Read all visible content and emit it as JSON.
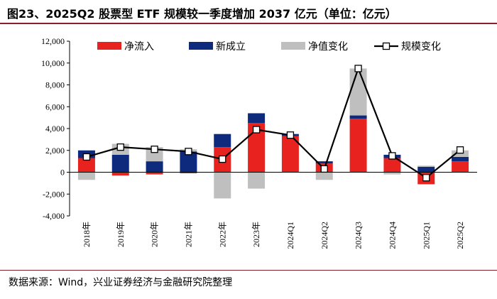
{
  "title": "图23、2025Q2 股票型 ETF 规模较一季度增加 2037 亿元（单位：亿元）",
  "source": "数据来源：Wind，兴业证券经济与金融研究院整理",
  "chart_data": {
    "type": "bar",
    "stacked": true,
    "categories": [
      "2018年",
      "2019年",
      "2020年",
      "2021年",
      "2022年",
      "2023年",
      "2024Q1",
      "2024Q2",
      "2024Q3",
      "2024Q4",
      "2025Q1",
      "2025Q2"
    ],
    "series": [
      {
        "name": "净流入",
        "type": "bar",
        "color": "#e8231f",
        "values": [
          1300,
          -300,
          -200,
          -100,
          2300,
          4500,
          3300,
          800,
          4900,
          1300,
          -1100,
          1000
        ]
      },
      {
        "name": "新成立",
        "type": "bar",
        "color": "#0d2a7d",
        "values": [
          700,
          1600,
          1000,
          1900,
          1200,
          900,
          200,
          200,
          300,
          300,
          500,
          400
        ]
      },
      {
        "name": "净值变化",
        "type": "bar",
        "color": "#bfbfbf",
        "values": [
          -700,
          1000,
          1300,
          200,
          -2400,
          -1500,
          0,
          -700,
          4300,
          -200,
          100,
          600
        ]
      },
      {
        "name": "规模变化",
        "type": "line",
        "color": "#000000",
        "values": [
          1400,
          2300,
          2100,
          1900,
          1200,
          3900,
          3400,
          300,
          9500,
          1500,
          -500,
          2037
        ]
      }
    ],
    "ylim": [
      -4000,
      12000
    ],
    "yticks": [
      "-4,000",
      "-2,000",
      "0",
      "2,000",
      "4,000",
      "6,000",
      "8,000",
      "10,000",
      "12,000"
    ],
    "legend_position": "top"
  }
}
